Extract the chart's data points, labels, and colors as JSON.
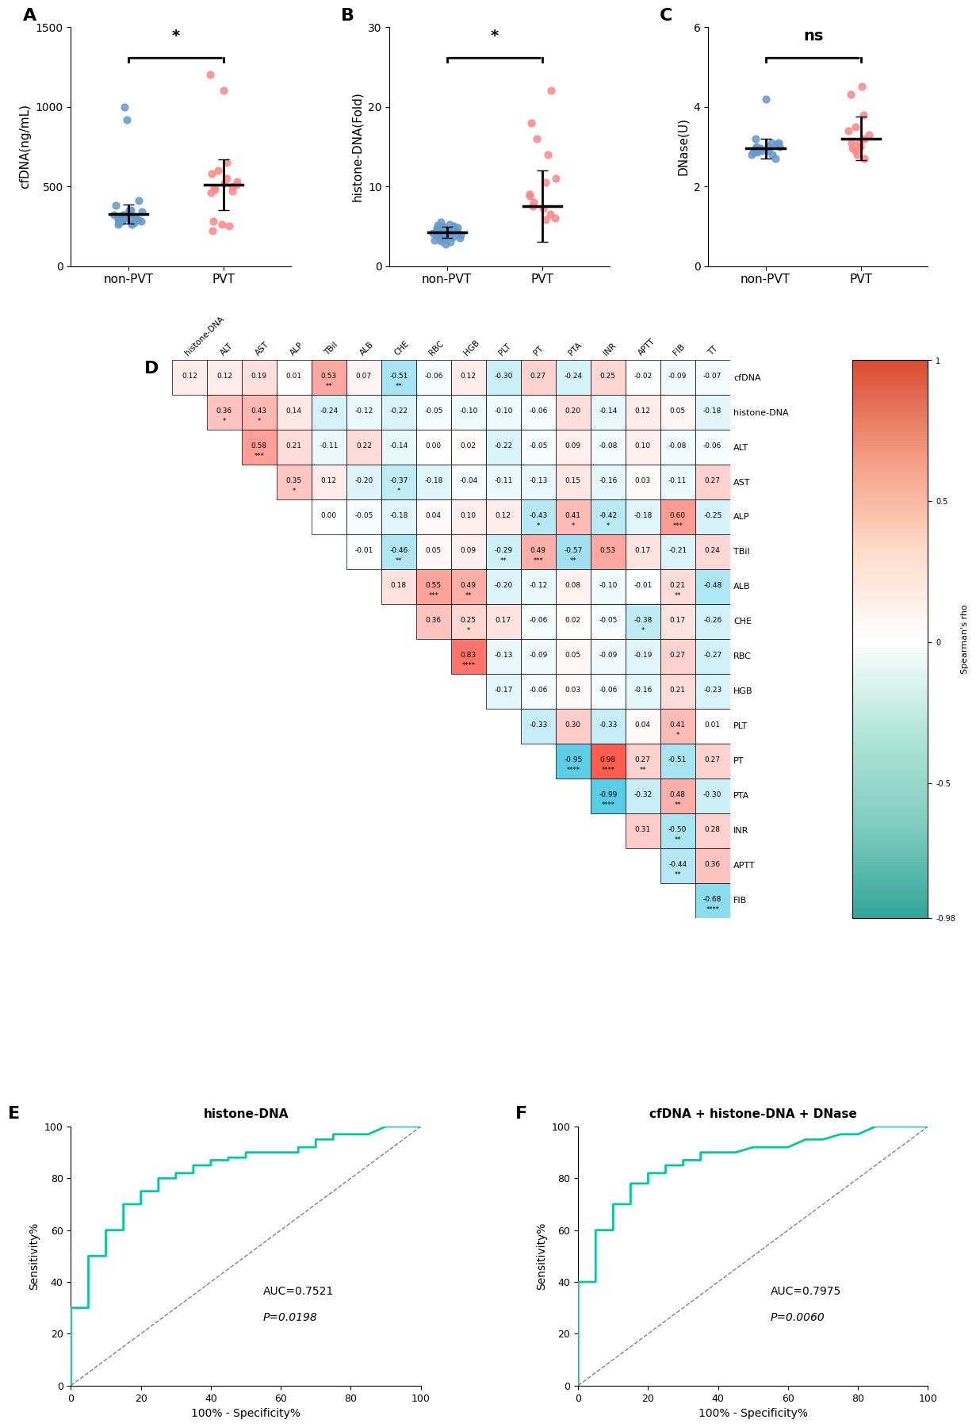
{
  "panel_A": {
    "title": "A",
    "ylabel": "cfDNA（ng/mL）",
    "groups": [
      "non-PVT",
      "PVT"
    ],
    "non_pvt": [
      320,
      280,
      310,
      350,
      290,
      260,
      380,
      410,
      300,
      270,
      320,
      340,
      290,
      310,
      270,
      280,
      320,
      350,
      300,
      290,
      260,
      310,
      280,
      1000,
      920
    ],
    "pvt": [
      500,
      480,
      520,
      550,
      460,
      650,
      490,
      580,
      510,
      530,
      470,
      600,
      220,
      250,
      260,
      280,
      1100,
      1200
    ],
    "non_pvt_mean": 325,
    "non_pvt_sd": 60,
    "pvt_mean": 510,
    "pvt_sd": 160,
    "ylim": [
      0,
      1500
    ],
    "yticks": [
      0,
      500,
      1000,
      1500
    ],
    "sig": "*"
  },
  "panel_B": {
    "title": "B",
    "ylabel": "histone-DNA（Fold）",
    "groups": [
      "non-PVT",
      "PVT"
    ],
    "non_pvt": [
      4.0,
      3.5,
      5.0,
      4.2,
      3.8,
      4.5,
      3.2,
      4.8,
      5.2,
      3.6,
      4.1,
      3.9,
      4.3,
      3.7,
      5.1,
      4.6,
      3.4,
      4.4,
      3.3,
      5.5,
      3.0,
      4.7,
      3.1,
      4.9,
      2.8
    ],
    "pvt": [
      6.5,
      8.0,
      7.2,
      10.5,
      9.0,
      5.8,
      7.5,
      8.8,
      6.0,
      11.0,
      22.0,
      16.0,
      18.0,
      14.0
    ],
    "non_pvt_mean": 4.2,
    "non_pvt_sd": 0.7,
    "pvt_mean": 7.5,
    "pvt_sd": 4.5,
    "ylim": [
      0,
      30
    ],
    "yticks": [
      0,
      10,
      20,
      30
    ],
    "sig": "*"
  },
  "panel_C": {
    "title": "C",
    "ylabel": "DNase（U）",
    "groups": [
      "non-PVT",
      "PVT"
    ],
    "non_pvt": [
      2.9,
      3.1,
      2.8,
      3.0,
      2.95,
      3.2,
      2.85,
      3.05,
      2.9,
      3.1,
      2.8,
      3.0,
      2.7,
      2.85,
      2.9,
      3.0,
      2.95,
      4.2
    ],
    "pvt": [
      3.1,
      2.9,
      3.2,
      4.3,
      3.5,
      2.8,
      3.0,
      3.3,
      2.95,
      4.5,
      3.8,
      3.4,
      2.7,
      3.1
    ],
    "non_pvt_mean": 2.95,
    "non_pvt_sd": 0.25,
    "pvt_mean": 3.2,
    "pvt_sd": 0.55,
    "ylim": [
      0,
      6
    ],
    "yticks": [
      0,
      2,
      4,
      6
    ],
    "sig": "ns"
  },
  "panel_D": {
    "title": "D",
    "row_labels": [
      "cfDNA",
      "histone-DNA",
      "ALT",
      "AST",
      "ALP",
      "TBil",
      "ALB",
      "CHE",
      "RBC",
      "HGB",
      "PLT",
      "PT",
      "PTA",
      "INR",
      "APTT",
      "FIB",
      "TT"
    ],
    "col_labels": [
      "histone-DNA",
      "ALT",
      "AST",
      "ALP",
      "TBil",
      "ALB",
      "CHE",
      "RBC",
      "HGB",
      "PLT",
      "PT",
      "PTA",
      "INR",
      "APTT",
      "FIB",
      "TT"
    ],
    "values": [
      [
        0.12,
        0.12,
        0.19,
        0.01,
        0.53,
        0.07,
        -0.51,
        -0.06,
        0.12,
        -0.3,
        0.27,
        -0.24,
        0.25,
        -0.02,
        -0.09,
        -0.07
      ],
      [
        null,
        0.36,
        0.43,
        0.14,
        -0.24,
        -0.12,
        -0.22,
        -0.05,
        -0.1,
        -0.1,
        -0.06,
        0.2,
        -0.14,
        0.12,
        0.05,
        -0.18
      ],
      [
        null,
        null,
        0.58,
        0.21,
        -0.11,
        0.22,
        -0.14,
        0.0,
        0.02,
        -0.22,
        -0.05,
        0.09,
        -0.08,
        0.1,
        -0.08,
        -0.06
      ],
      [
        null,
        null,
        null,
        0.35,
        0.12,
        -0.2,
        -0.37,
        -0.18,
        -0.04,
        -0.11,
        -0.13,
        0.15,
        -0.16,
        0.03,
        -0.11,
        0.27
      ],
      [
        null,
        null,
        null,
        null,
        0.0,
        -0.05,
        -0.18,
        0.04,
        0.1,
        0.12,
        -0.43,
        0.41,
        -0.42,
        -0.18,
        0.6,
        -0.25
      ],
      [
        null,
        null,
        null,
        null,
        null,
        -0.01,
        -0.46,
        0.05,
        0.09,
        -0.29,
        0.49,
        -0.57,
        0.53,
        0.17,
        -0.21,
        0.24
      ],
      [
        null,
        null,
        null,
        null,
        null,
        null,
        0.18,
        0.55,
        0.49,
        -0.2,
        -0.12,
        0.08,
        -0.1,
        -0.01,
        0.21,
        -0.48
      ],
      [
        null,
        null,
        null,
        null,
        null,
        null,
        null,
        0.36,
        0.25,
        0.17,
        -0.06,
        0.02,
        -0.05,
        -0.38,
        0.17,
        -0.26
      ],
      [
        null,
        null,
        null,
        null,
        null,
        null,
        null,
        null,
        0.83,
        -0.13,
        -0.09,
        0.05,
        -0.09,
        -0.19,
        0.27,
        -0.27
      ],
      [
        null,
        null,
        null,
        null,
        null,
        null,
        null,
        null,
        null,
        -0.17,
        -0.06,
        0.03,
        -0.06,
        -0.16,
        0.21,
        -0.23
      ],
      [
        null,
        null,
        null,
        null,
        null,
        null,
        null,
        null,
        null,
        null,
        -0.33,
        0.3,
        -0.33,
        0.04,
        0.41,
        0.01
      ],
      [
        null,
        null,
        null,
        null,
        null,
        null,
        null,
        null,
        null,
        null,
        null,
        -0.95,
        0.98,
        0.27,
        -0.51,
        0.27
      ],
      [
        null,
        null,
        null,
        null,
        null,
        null,
        null,
        null,
        null,
        null,
        null,
        null,
        -0.99,
        -0.32,
        0.48,
        -0.3
      ],
      [
        null,
        null,
        null,
        null,
        null,
        null,
        null,
        null,
        null,
        null,
        null,
        null,
        null,
        0.31,
        -0.5,
        0.28
      ],
      [
        null,
        null,
        null,
        null,
        null,
        null,
        null,
        null,
        null,
        null,
        null,
        null,
        null,
        null,
        -0.44,
        0.36
      ],
      [
        null,
        null,
        null,
        null,
        null,
        null,
        null,
        null,
        null,
        null,
        null,
        null,
        null,
        null,
        null,
        -0.68
      ],
      [
        null,
        null,
        null,
        null,
        null,
        null,
        null,
        null,
        null,
        null,
        null,
        null,
        null,
        null,
        null,
        null
      ]
    ],
    "sig_labels": [
      [
        "",
        "",
        "",
        "",
        "**",
        "",
        "**",
        "",
        "",
        "",
        "",
        "",
        "",
        "",
        "",
        ""
      ],
      [
        "",
        "*",
        "*",
        "",
        "",
        "",
        "",
        "",
        "",
        "",
        "",
        "",
        "",
        "",
        "",
        ""
      ],
      [
        "",
        "",
        "***",
        "",
        "",
        "",
        "",
        "",
        "",
        "",
        "",
        "",
        "",
        "",
        "",
        ""
      ],
      [
        "",
        "",
        "",
        "*",
        "",
        "",
        "*",
        "",
        "",
        "",
        "",
        "",
        "",
        "",
        "",
        ""
      ],
      [
        "",
        "",
        "",
        "",
        "",
        "",
        "",
        "",
        "",
        "",
        "*",
        "*",
        "*",
        "",
        "***",
        ""
      ],
      [
        "",
        "",
        "",
        "",
        "",
        "",
        "**",
        "",
        "",
        "**",
        "***",
        "**",
        "",
        "",
        "",
        ""
      ],
      [
        "",
        "",
        "",
        "",
        "",
        "",
        "",
        "***",
        "**",
        "",
        "",
        "",
        "",
        "",
        "**",
        ""
      ],
      [
        "",
        "",
        "",
        "",
        "",
        "",
        "",
        "",
        "*",
        "",
        "",
        "",
        "",
        "*",
        "",
        ""
      ],
      [
        "",
        "",
        "",
        "",
        "",
        "",
        "",
        "",
        "****",
        "",
        "",
        "",
        "",
        "",
        "",
        ""
      ],
      [
        "",
        "",
        "",
        "",
        "",
        "",
        "",
        "",
        "",
        "",
        "",
        "",
        "",
        "",
        "",
        ""
      ],
      [
        "",
        "",
        "",
        "",
        "",
        "",
        "",
        "",
        "",
        "",
        "",
        "",
        "",
        "",
        "*",
        ""
      ],
      [
        "",
        "",
        "",
        "",
        "",
        "",
        "",
        "",
        "",
        "",
        "",
        "****",
        "****",
        "**",
        "",
        ""
      ],
      [
        "",
        "",
        "",
        "",
        "",
        "",
        "",
        "",
        "",
        "",
        "",
        "",
        "****",
        "",
        "**",
        ""
      ],
      [
        "",
        "",
        "",
        "",
        "",
        "",
        "",
        "",
        "",
        "",
        "",
        "",
        "",
        "",
        "**",
        ""
      ],
      [
        "",
        "",
        "",
        "",
        "",
        "",
        "",
        "",
        "",
        "",
        "",
        "",
        "",
        "",
        "**",
        ""
      ],
      [
        "",
        "",
        "",
        "",
        "",
        "",
        "",
        "",
        "",
        "",
        "",
        "",
        "",
        "",
        "",
        "****"
      ],
      [
        "",
        "",
        "",
        "",
        "",
        "",
        "",
        "",
        "",
        "",
        "",
        "",
        "",
        "",
        "",
        ""
      ]
    ]
  },
  "panel_E": {
    "title": "histone-DNA",
    "auc_text": "AUC=0.7521",
    "p_text": "P=0.0198",
    "fpr": [
      0,
      0,
      0,
      0.05,
      0.05,
      0.1,
      0.1,
      0.15,
      0.15,
      0.2,
      0.2,
      0.25,
      0.25,
      0.3,
      0.3,
      0.35,
      0.35,
      0.4,
      0.4,
      0.45,
      0.45,
      0.5,
      0.5,
      0.55,
      0.6,
      0.65,
      0.65,
      0.7,
      0.7,
      0.75,
      0.75,
      0.8,
      0.85,
      0.9,
      0.95,
      1.0
    ],
    "tpr": [
      0,
      0.1,
      0.3,
      0.3,
      0.5,
      0.5,
      0.6,
      0.6,
      0.7,
      0.7,
      0.75,
      0.75,
      0.8,
      0.8,
      0.82,
      0.82,
      0.85,
      0.85,
      0.87,
      0.87,
      0.88,
      0.88,
      0.9,
      0.9,
      0.9,
      0.9,
      0.92,
      0.92,
      0.95,
      0.95,
      0.97,
      0.97,
      0.97,
      1.0,
      1.0,
      1.0
    ]
  },
  "panel_F": {
    "title": "cfDNA + histone-DNA + DNase",
    "auc_text": "AUC=0.7975",
    "p_text": "P=0.0060",
    "fpr": [
      0,
      0,
      0,
      0.05,
      0.05,
      0.1,
      0.1,
      0.15,
      0.15,
      0.2,
      0.2,
      0.25,
      0.25,
      0.3,
      0.3,
      0.35,
      0.35,
      0.4,
      0.45,
      0.5,
      0.55,
      0.6,
      0.65,
      0.7,
      0.75,
      0.8,
      0.85,
      0.9,
      0.95,
      1.0
    ],
    "tpr": [
      0,
      0.1,
      0.4,
      0.4,
      0.6,
      0.6,
      0.7,
      0.7,
      0.78,
      0.78,
      0.82,
      0.82,
      0.85,
      0.85,
      0.87,
      0.87,
      0.9,
      0.9,
      0.9,
      0.92,
      0.92,
      0.92,
      0.95,
      0.95,
      0.97,
      0.97,
      1.0,
      1.0,
      1.0,
      1.0
    ]
  },
  "blue_color": "#6699CC",
  "red_color": "#FF8888",
  "dot_size": 40,
  "line_color": "#000000",
  "roc_color": "#00C8A0"
}
